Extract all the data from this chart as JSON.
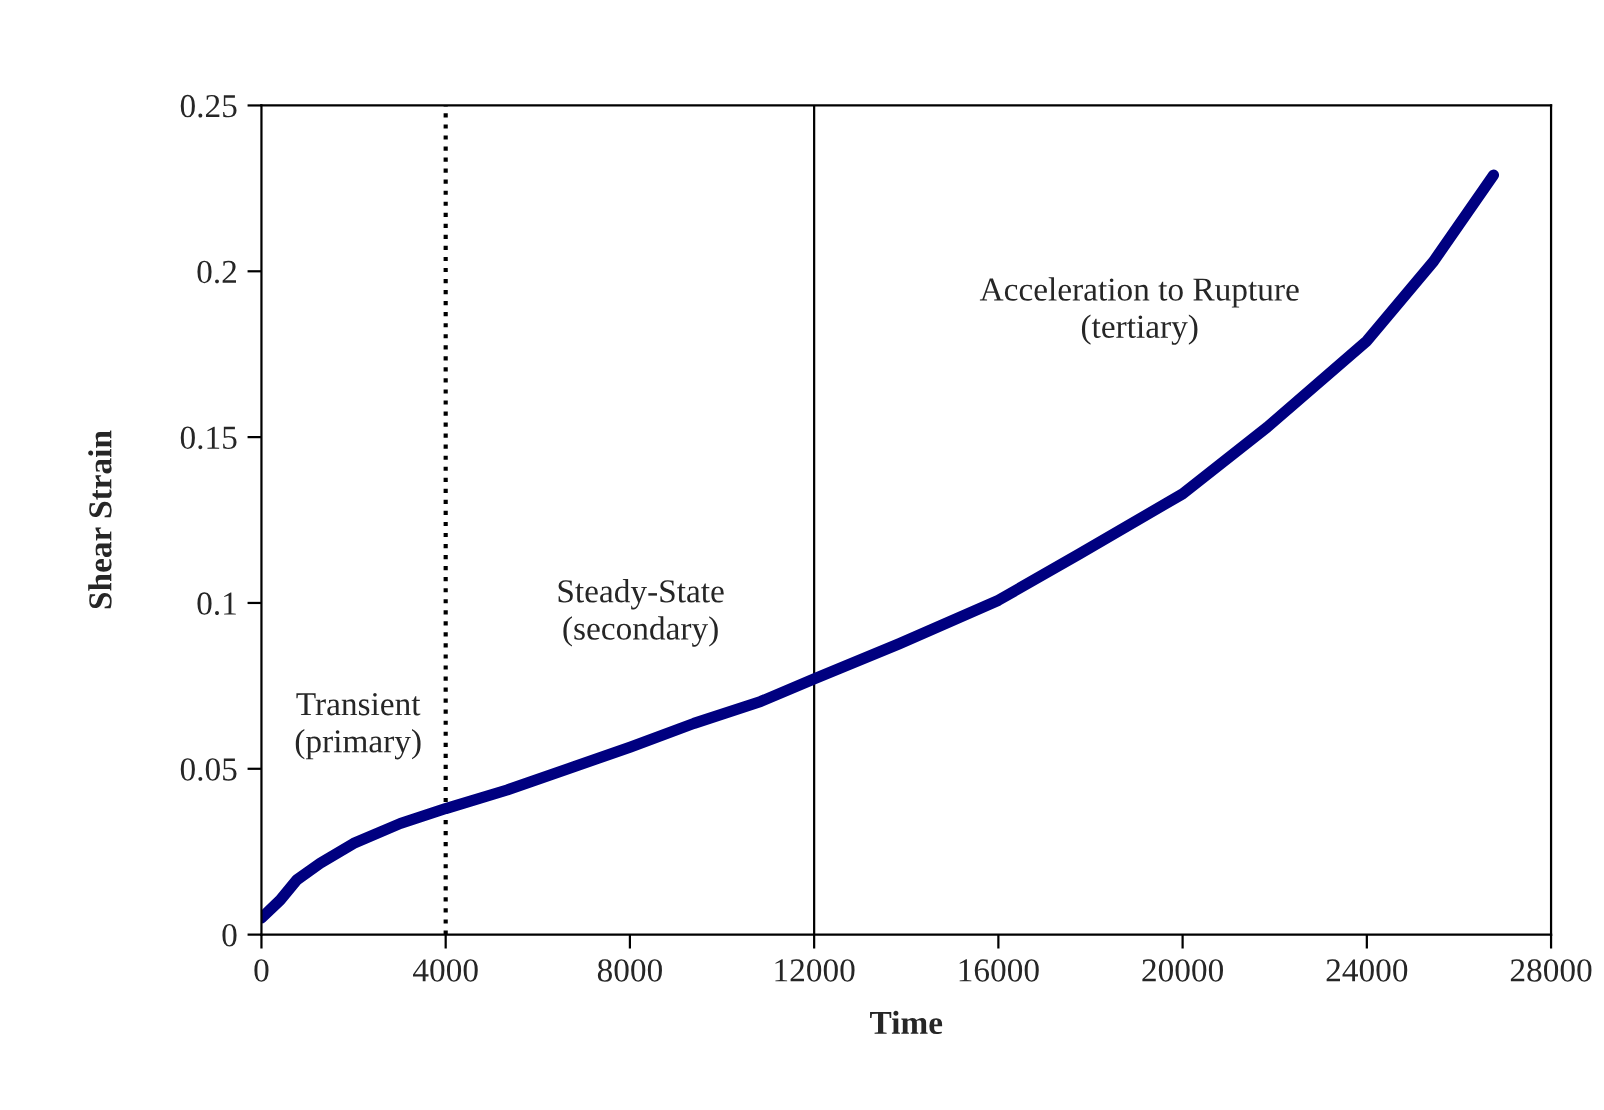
{
  "chart_data": {
    "type": "line",
    "xlabel": "Time",
    "ylabel": "Shear Strain",
    "series": [
      {
        "color": "#000080",
        "x": [
          0,
          406,
          768,
          1275,
          2000,
          3014,
          4000,
          5333,
          6783,
          8015,
          9391,
          10841,
          12000,
          13848,
          16000,
          17761,
          20000,
          21839,
          24000,
          25449,
          26750
        ],
        "values": [
          0.005,
          0.0104,
          0.0165,
          0.0215,
          0.0275,
          0.0335,
          0.038,
          0.0436,
          0.0506,
          0.0566,
          0.0637,
          0.0703,
          0.0771,
          0.0877,
          0.1008,
          0.1148,
          0.1329,
          0.153,
          0.179,
          0.203,
          0.229
        ]
      }
    ],
    "xlim": [
      0,
      28000
    ],
    "xticks": [
      0,
      4000,
      8000,
      12000,
      16000,
      20000,
      24000,
      28000
    ],
    "ylim": [
      0,
      0.25
    ],
    "yticks": [
      0,
      0.05,
      0.1,
      0.15,
      0.2,
      0.25
    ],
    "ref_lines": [
      {
        "axis": "x",
        "value": 4000,
        "color": "#000000",
        "line_style": "dotted"
      },
      {
        "axis": "x",
        "value": 12000,
        "color": "#000000",
        "line_style": "solid"
      }
    ],
    "annotations": [
      "Transient\n(primary)",
      "Steady-State\n(secondary)",
      "Acceleration to Rupture\n(tertiary)"
    ],
    "grid": false,
    "legend": false,
    "marker": "none",
    "line_style": "solid"
  }
}
